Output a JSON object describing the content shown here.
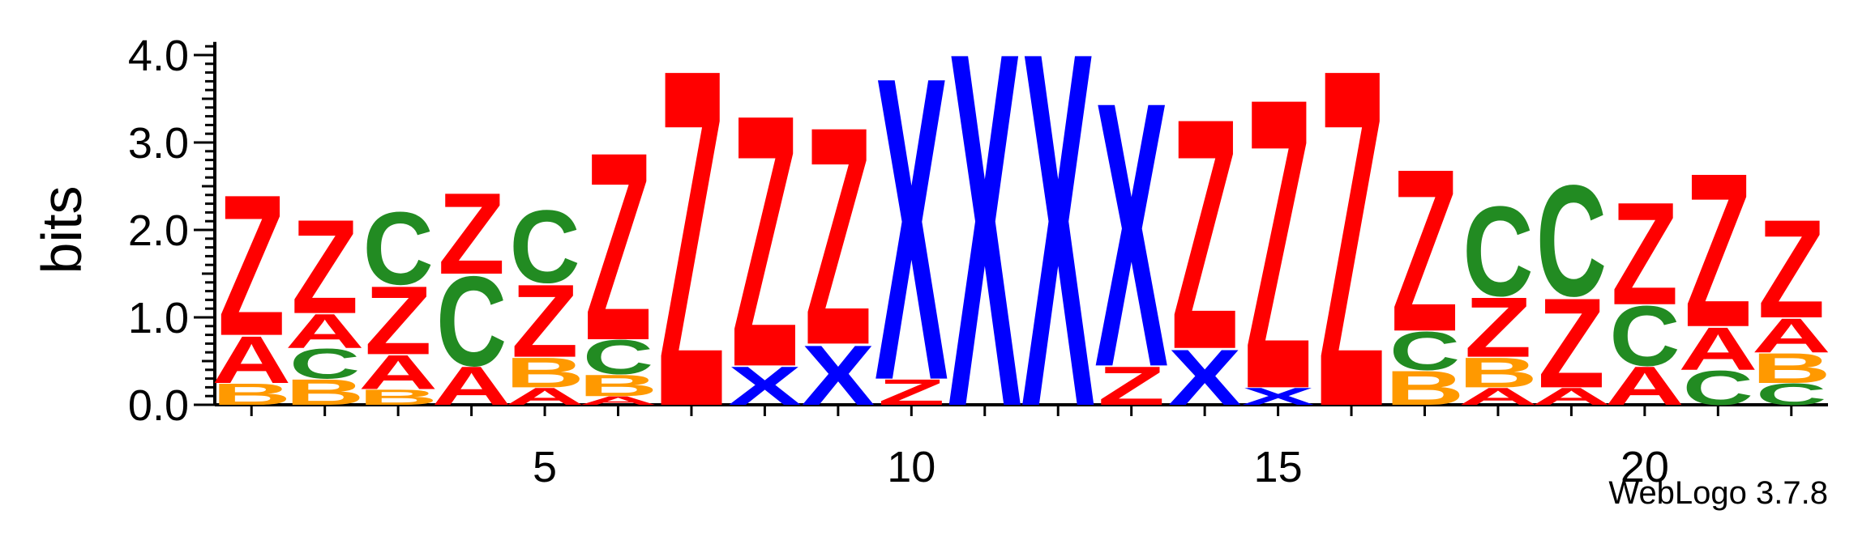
{
  "chart_data": {
    "type": "sequence-logo",
    "ylabel": "bits",
    "xlabel": "",
    "title": "",
    "ylim": [
      0,
      4.2
    ],
    "yticks": [
      "0.0",
      "1.0",
      "2.0",
      "3.0",
      "4.0"
    ],
    "x_tick_labels": [
      "5",
      "10",
      "15",
      "20"
    ],
    "x_tick_positions": [
      5,
      10,
      15,
      20
    ],
    "grid": false,
    "footer": "WebLogo 3.7.8",
    "colors": {
      "Z": "#ff0000",
      "A": "#ff0000",
      "C": "#228b22",
      "B": "#ff9900",
      "X": "#0000ff"
    },
    "positions": [
      {
        "pos": 1,
        "stack": [
          {
            "s": "B",
            "v": 0.25
          },
          {
            "s": "A",
            "v": 0.55
          },
          {
            "s": "Z",
            "v": 1.65
          }
        ]
      },
      {
        "pos": 2,
        "stack": [
          {
            "s": "B",
            "v": 0.3
          },
          {
            "s": "C",
            "v": 0.35
          },
          {
            "s": "A",
            "v": 0.4
          },
          {
            "s": "Z",
            "v": 1.1
          }
        ]
      },
      {
        "pos": 3,
        "stack": [
          {
            "s": "B",
            "v": 0.18
          },
          {
            "s": "A",
            "v": 0.4
          },
          {
            "s": "Z",
            "v": 0.8
          },
          {
            "s": "C",
            "v": 0.85
          }
        ]
      },
      {
        "pos": 4,
        "stack": [
          {
            "s": "A",
            "v": 0.45
          },
          {
            "s": "C",
            "v": 1.05
          },
          {
            "s": "Z",
            "v": 0.95
          }
        ]
      },
      {
        "pos": 5,
        "stack": [
          {
            "s": "A",
            "v": 0.2
          },
          {
            "s": "B",
            "v": 0.35
          },
          {
            "s": "Z",
            "v": 0.85
          },
          {
            "s": "C",
            "v": 0.85
          }
        ]
      },
      {
        "pos": 6,
        "stack": [
          {
            "s": "A",
            "v": 0.1
          },
          {
            "s": "B",
            "v": 0.25
          },
          {
            "s": "C",
            "v": 0.4
          },
          {
            "s": "Z",
            "v": 2.2
          }
        ]
      },
      {
        "pos": 7,
        "stack": [
          {
            "s": "Z",
            "v": 3.95
          }
        ]
      },
      {
        "pos": 8,
        "stack": [
          {
            "s": "X",
            "v": 0.45
          },
          {
            "s": "Z",
            "v": 2.95
          }
        ]
      },
      {
        "pos": 9,
        "stack": [
          {
            "s": "X",
            "v": 0.7
          },
          {
            "s": "Z",
            "v": 2.55
          }
        ]
      },
      {
        "pos": 10,
        "stack": [
          {
            "s": "Z",
            "v": 0.3
          },
          {
            "s": "X",
            "v": 3.55
          }
        ]
      },
      {
        "pos": 11,
        "stack": [
          {
            "s": "X",
            "v": 4.15
          }
        ]
      },
      {
        "pos": 12,
        "stack": [
          {
            "s": "X",
            "v": 4.15
          }
        ]
      },
      {
        "pos": 13,
        "stack": [
          {
            "s": "Z",
            "v": 0.45
          },
          {
            "s": "X",
            "v": 3.1
          }
        ]
      },
      {
        "pos": 14,
        "stack": [
          {
            "s": "X",
            "v": 0.65
          },
          {
            "s": "Z",
            "v": 2.7
          }
        ]
      },
      {
        "pos": 15,
        "stack": [
          {
            "s": "X",
            "v": 0.2
          },
          {
            "s": "Z",
            "v": 3.4
          }
        ]
      },
      {
        "pos": 16,
        "stack": [
          {
            "s": "Z",
            "v": 3.95
          }
        ]
      },
      {
        "pos": 17,
        "stack": [
          {
            "s": "B",
            "v": 0.4
          },
          {
            "s": "C",
            "v": 0.45
          },
          {
            "s": "Z",
            "v": 1.9
          }
        ]
      },
      {
        "pos": 18,
        "stack": [
          {
            "s": "A",
            "v": 0.2
          },
          {
            "s": "B",
            "v": 0.35
          },
          {
            "s": "Z",
            "v": 0.7
          },
          {
            "s": "C",
            "v": 1.05
          }
        ]
      },
      {
        "pos": 19,
        "stack": [
          {
            "s": "A",
            "v": 0.2
          },
          {
            "s": "Z",
            "v": 1.05
          },
          {
            "s": "C",
            "v": 1.3
          }
        ]
      },
      {
        "pos": 20,
        "stack": [
          {
            "s": "A",
            "v": 0.45
          },
          {
            "s": "C",
            "v": 0.7
          },
          {
            "s": "Z",
            "v": 1.2
          }
        ]
      },
      {
        "pos": 21,
        "stack": [
          {
            "s": "C",
            "v": 0.4
          },
          {
            "s": "A",
            "v": 0.5
          },
          {
            "s": "Z",
            "v": 1.8
          }
        ]
      },
      {
        "pos": 22,
        "stack": [
          {
            "s": "C",
            "v": 0.25
          },
          {
            "s": "B",
            "v": 0.35
          },
          {
            "s": "A",
            "v": 0.4
          },
          {
            "s": "Z",
            "v": 1.15
          }
        ]
      }
    ]
  }
}
